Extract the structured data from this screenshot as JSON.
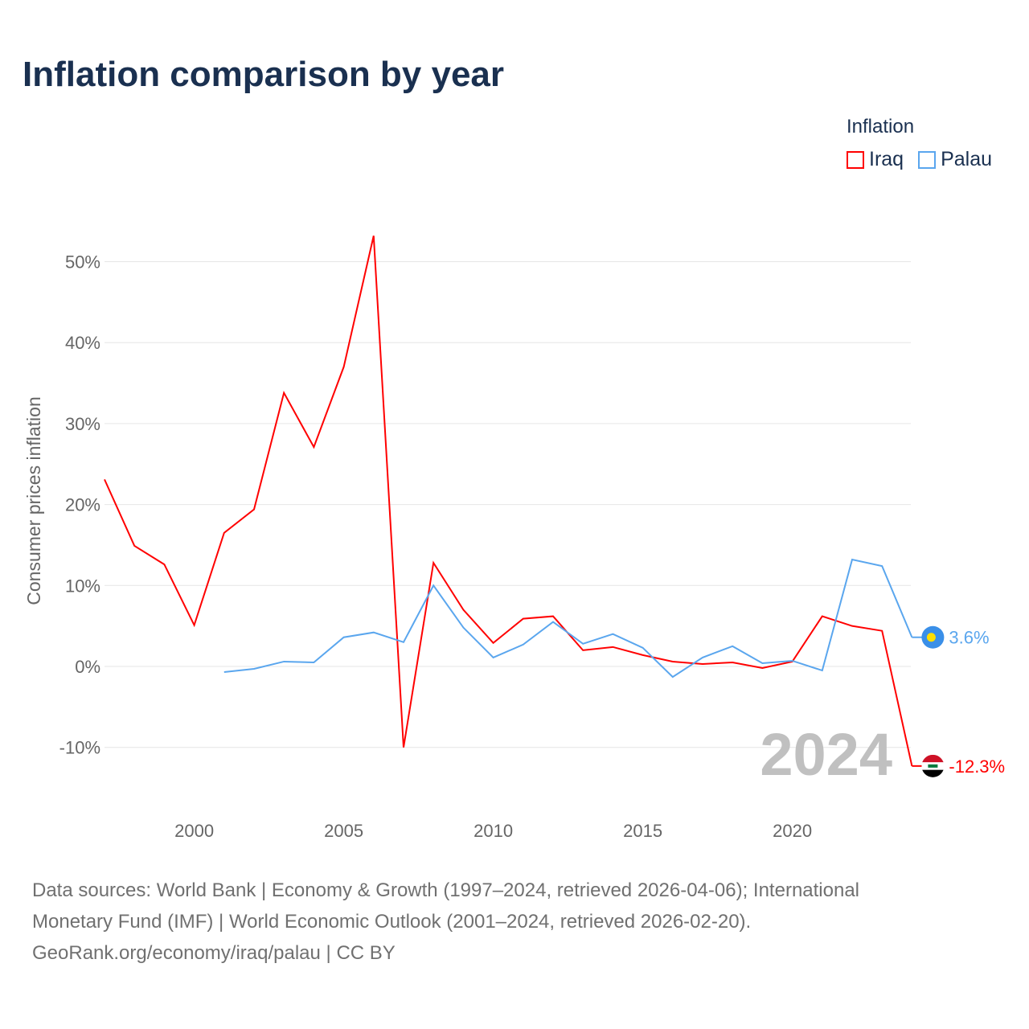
{
  "title": "Inflation comparison by year",
  "legend": {
    "title": "Inflation",
    "items": [
      {
        "name": "Iraq",
        "color": "#ff0000"
      },
      {
        "name": "Palau",
        "color": "#5aa6ee"
      }
    ]
  },
  "source": {
    "line1": "Data sources: World Bank | Economy & Growth (1997–2024, retrieved 2026-04-06); International",
    "line2": "Monetary Fund (IMF) | World Economic Outlook (2001–2024, retrieved 2026-02-20).",
    "line3": "GeoRank.org/economy/iraq/palau | CC BY"
  },
  "chart_data": {
    "type": "line",
    "title": "Inflation comparison by year",
    "ylabel": "Consumer prices inflation",
    "xlabel": "",
    "xlim": [
      1997,
      2024
    ],
    "ylim": [
      -15,
      55
    ],
    "x_ticks": [
      2000,
      2005,
      2010,
      2015,
      2020
    ],
    "y_ticks": [
      -10,
      0,
      10,
      20,
      30,
      40,
      50
    ],
    "y_tick_labels": [
      "-10%",
      "0%",
      "10%",
      "20%",
      "30%",
      "40%",
      "50%"
    ],
    "year_watermark": "2024",
    "grid": true,
    "legend_position": "top-right",
    "series": [
      {
        "name": "Iraq",
        "color": "#ff0000",
        "end_label": "-12.3%",
        "x": [
          1997,
          1998,
          1999,
          2000,
          2001,
          2002,
          2003,
          2004,
          2005,
          2006,
          2007,
          2008,
          2009,
          2010,
          2011,
          2012,
          2013,
          2014,
          2015,
          2016,
          2017,
          2018,
          2019,
          2020,
          2021,
          2022,
          2023,
          2024
        ],
        "values": [
          23.1,
          14.9,
          12.6,
          5.1,
          16.5,
          19.4,
          33.8,
          27.1,
          37.0,
          53.2,
          -10.0,
          12.8,
          7.0,
          2.9,
          5.9,
          6.2,
          2.0,
          2.4,
          1.4,
          0.6,
          0.3,
          0.5,
          -0.2,
          0.6,
          6.2,
          5.0,
          4.4,
          -12.3
        ]
      },
      {
        "name": "Palau",
        "color": "#5aa6ee",
        "end_label": "3.6%",
        "x": [
          2001,
          2002,
          2003,
          2004,
          2005,
          2006,
          2007,
          2008,
          2009,
          2010,
          2011,
          2012,
          2013,
          2014,
          2015,
          2016,
          2017,
          2018,
          2019,
          2020,
          2021,
          2022,
          2023,
          2024
        ],
        "values": [
          -0.7,
          -0.3,
          0.6,
          0.5,
          3.6,
          4.2,
          3.0,
          10.0,
          4.8,
          1.1,
          2.7,
          5.5,
          2.8,
          4.0,
          2.3,
          -1.3,
          1.1,
          2.5,
          0.4,
          0.7,
          -0.5,
          13.2,
          12.4,
          3.6
        ]
      }
    ]
  }
}
